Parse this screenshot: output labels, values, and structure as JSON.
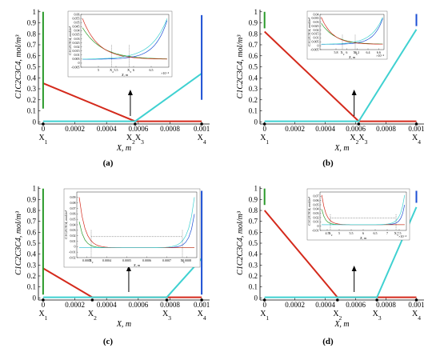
{
  "chart_data": [
    {
      "panel": "(a)",
      "type": "line",
      "ylabel": "C1C2C3C4, mol/m³",
      "xlabel": "X, m",
      "xlim": [
        -3e-05,
        0.00105
      ],
      "ylim": [
        -0.02,
        1.02
      ],
      "x_ticks": [
        "0",
        "0.0002",
        "0.0004",
        "0.0006",
        "0.0008",
        "0.001"
      ],
      "y_ticks": [
        "0",
        "0.1",
        "0.2",
        "0.3",
        "0.4",
        "0.5",
        "0.6",
        "0.7",
        "0.8",
        "0.9",
        "1"
      ],
      "point_labels": [
        {
          "x": 0,
          "text": "X1"
        },
        {
          "x": 0.00058,
          "text": "X2X3"
        },
        {
          "x": 0.001,
          "text": "X4"
        }
      ],
      "series": [
        {
          "color": "#d42a1c",
          "points": [
            [
              0,
              0.35
            ],
            [
              0.00058,
              0.005
            ],
            [
              0.001,
              0.005
            ]
          ]
        },
        {
          "color": "#3fd1d1",
          "points": [
            [
              0,
              0.005
            ],
            [
              0.00058,
              0.005
            ],
            [
              0.001,
              0.44
            ]
          ]
        },
        {
          "color": "#2a9a2a",
          "points": [
            [
              0,
              1.0
            ],
            [
              0,
              0.12
            ]
          ]
        },
        {
          "color": "#1c4fd4",
          "points": [
            [
              0.001,
              0.97
            ],
            [
              0.001,
              0.2
            ]
          ]
        }
      ],
      "arrow_x": 0.00055,
      "inset": {
        "xlabel": "X, m",
        "ylabel": "C1C2C3C4, mol/m³",
        "xlim": [
          4.5,
          7.0
        ],
        "ylim": [
          -0.005,
          0.06
        ],
        "x_ticks": [
          "5",
          "5.5",
          "6",
          "6.5"
        ],
        "y_ticks": [
          "-0.005",
          "0",
          "0.005",
          "0.01",
          "0.015",
          "0.02",
          "0.025",
          "0.03",
          "0.035",
          "0.04",
          "0.045",
          "0.05",
          "0.055",
          "0.06"
        ],
        "x_scale_note": "×10⁻⁴",
        "marks": [
          "X2",
          "X3"
        ]
      }
    },
    {
      "panel": "(b)",
      "type": "line",
      "ylabel": "C1C2C3C4, mol/m³",
      "xlabel": "X, m",
      "xlim": [
        -3e-05,
        0.00105
      ],
      "ylim": [
        -0.02,
        1.02
      ],
      "x_ticks": [
        "0",
        "0.0002",
        "0.0004",
        "0.0006",
        "0.0008",
        "0.001"
      ],
      "y_ticks": [
        "0",
        "0.1",
        "0.2",
        "0.3",
        "0.4",
        "0.5",
        "0.6",
        "0.7",
        "0.8",
        "0.9",
        "1"
      ],
      "point_labels": [
        {
          "x": 0,
          "text": "X1"
        },
        {
          "x": 0.00062,
          "text": "X2X3"
        },
        {
          "x": 0.001,
          "text": "X4"
        }
      ],
      "series": [
        {
          "color": "#d42a1c",
          "points": [
            [
              0,
              0.82
            ],
            [
              0.00062,
              0.005
            ],
            [
              0.001,
              0.005
            ]
          ]
        },
        {
          "color": "#3fd1d1",
          "points": [
            [
              0,
              0.005
            ],
            [
              0.00062,
              0.005
            ],
            [
              0.001,
              0.84
            ]
          ]
        },
        {
          "color": "#2a9a2a",
          "points": [
            [
              0,
              1.0
            ],
            [
              0,
              0.85
            ]
          ]
        },
        {
          "color": "#1c4fd4",
          "points": [
            [
              0.001,
              0.98
            ],
            [
              0.001,
              0.87
            ]
          ]
        }
      ],
      "arrow_x": 0.00059,
      "inset": {
        "xlabel": "X, m",
        "ylabel": "C1C2C3C4, mol/m³",
        "xlim": [
          5.5,
          6.7
        ],
        "ylim": [
          -0.005,
          0.04
        ],
        "x_ticks": [
          "5.8",
          "6",
          "6.2",
          "6.4",
          "6.6"
        ],
        "y_ticks": [
          "-0.005",
          "0",
          "0.005",
          "0.01",
          "0.015",
          "0.02",
          "0.025",
          "0.03",
          "0.035",
          "0.04"
        ],
        "x_scale_note": "×10⁻⁴",
        "marks": [
          "X2",
          "X3"
        ]
      }
    },
    {
      "panel": "(c)",
      "type": "line",
      "ylabel": "C1C2C3C4, mol/m³",
      "xlabel": "X, m",
      "xlim": [
        -3e-05,
        0.00105
      ],
      "ylim": [
        -0.02,
        1.02
      ],
      "x_ticks": [
        "0",
        "0.0002",
        "0.0004",
        "0.0006",
        "0.0008",
        "0.001"
      ],
      "y_ticks": [
        "0",
        "0.1",
        "0.2",
        "0.3",
        "0.4",
        "0.5",
        "0.6",
        "0.7",
        "0.8",
        "0.9",
        "1"
      ],
      "point_labels": [
        {
          "x": 0,
          "text": "X1"
        },
        {
          "x": 0.00031,
          "text": "X2"
        },
        {
          "x": 0.00078,
          "text": "X3"
        },
        {
          "x": 0.001,
          "text": "X4"
        }
      ],
      "series": [
        {
          "color": "#d42a1c",
          "points": [
            [
              0,
              0.27
            ],
            [
              0.00031,
              0.005
            ],
            [
              0.001,
              0.005
            ]
          ]
        },
        {
          "color": "#3fd1d1",
          "points": [
            [
              0,
              0.005
            ],
            [
              0.00078,
              0.005
            ],
            [
              0.001,
              0.36
            ]
          ]
        },
        {
          "color": "#2a9a2a",
          "points": [
            [
              0,
              1.0
            ],
            [
              0,
              0.03
            ]
          ]
        },
        {
          "color": "#1c4fd4",
          "points": [
            [
              0.001,
              0.98
            ],
            [
              0.001,
              0.03
            ]
          ]
        }
      ],
      "arrow_x": 0.00054,
      "inset": {
        "xlabel": "X, m",
        "ylabel": "C1C2C3C4, mol/m³",
        "xlim": [
          0.00025,
          0.00085
        ],
        "ylim": [
          -0.02,
          0.1
        ],
        "x_ticks": [
          "0.0003",
          "0.0004",
          "0.0005",
          "0.0006",
          "0.0007",
          "0.0008"
        ],
        "y_ticks": [
          "-0.02",
          "-0.01",
          "0",
          "0.01",
          "0.02",
          "0.03",
          "0.04",
          "0.05",
          "0.06",
          "0.07",
          "0.08",
          "0.09"
        ],
        "marks": [
          "X2",
          "X3"
        ]
      }
    },
    {
      "panel": "(d)",
      "type": "line",
      "ylabel": "C1C2C3C4, mol/m³",
      "xlabel": "X, m",
      "xlim": [
        -3e-05,
        0.00105
      ],
      "ylim": [
        -0.02,
        1.02
      ],
      "x_ticks": [
        "0",
        "0.0002",
        "0.0004",
        "0.0006",
        "0.0008",
        "0.001"
      ],
      "y_ticks": [
        "0",
        "0.1",
        "0.2",
        "0.3",
        "0.4",
        "0.5",
        "0.6",
        "0.7",
        "0.8",
        "0.9",
        "1"
      ],
      "point_labels": [
        {
          "x": 0,
          "text": "X1"
        },
        {
          "x": 0.00048,
          "text": "X2"
        },
        {
          "x": 0.00074,
          "text": "X3"
        },
        {
          "x": 0.001,
          "text": "X4"
        }
      ],
      "series": [
        {
          "color": "#d42a1c",
          "points": [
            [
              0,
              0.8
            ],
            [
              0.00048,
              0.005
            ],
            [
              0.001,
              0.005
            ]
          ]
        },
        {
          "color": "#3fd1d1",
          "points": [
            [
              0,
              0.005
            ],
            [
              0.00074,
              0.005
            ],
            [
              0.001,
              0.83
            ]
          ]
        },
        {
          "color": "#2a9a2a",
          "points": [
            [
              0,
              1.0
            ],
            [
              0,
              0.85
            ]
          ]
        },
        {
          "color": "#1c4fd4",
          "points": [
            [
              0.001,
              0.98
            ],
            [
              0.001,
              0.87
            ]
          ]
        }
      ],
      "arrow_x": 0.00059,
      "inset": {
        "xlabel": "X, m",
        "ylabel": "C1C2C3C4, mol/m³",
        "xlim": [
          4.2,
          7.8
        ],
        "ylim": [
          -0.01,
          0.08
        ],
        "x_ticks": [
          "4.5",
          "5",
          "5.5",
          "6",
          "6.5",
          "7",
          "7.5"
        ],
        "y_ticks": [
          "-0.01",
          "0",
          "0.01",
          "0.02",
          "0.03",
          "0.04",
          "0.05",
          "0.06",
          "0.07"
        ],
        "x_scale_note": "×10⁻⁴",
        "marks": [
          "X2",
          "X3"
        ]
      }
    }
  ]
}
